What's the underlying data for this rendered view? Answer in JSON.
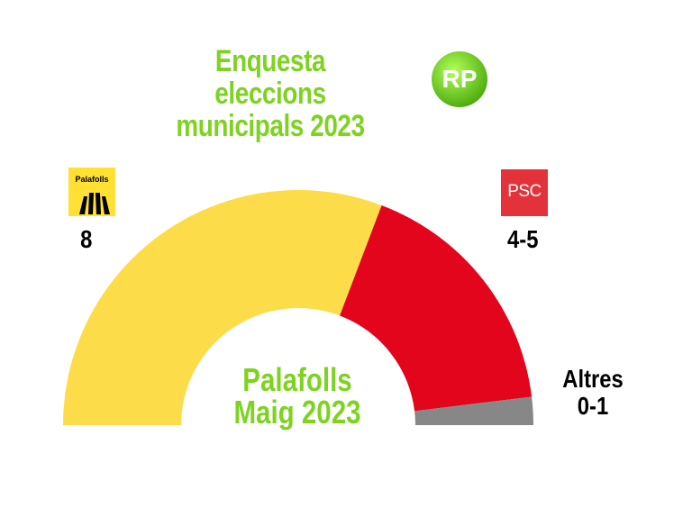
{
  "title_lines": [
    "Enquesta eleccions",
    "municipals 2023"
  ],
  "logo_text": "RP",
  "center_lines": [
    "Palafolls",
    "Maig 2023"
  ],
  "junts_logo_text": "Palafolls",
  "psc_logo_text": "PSC",
  "colors": {
    "accent_green": "#7ed321",
    "junts_yellow": "#fddc4a",
    "psc_red": "#e2051c",
    "altres_gray": "#878787"
  },
  "chart_data": {
    "type": "pie",
    "subtype": "semicircle-parliament",
    "total_seats": 13,
    "series": [
      {
        "name": "Palafolls",
        "label": "8",
        "seats": 8,
        "color": "#fddc4a"
      },
      {
        "name": "PSC",
        "label": "4-5",
        "seats": 4.5,
        "color": "#e2051c"
      },
      {
        "name": "Altres",
        "label": "0-1",
        "seats": 0.5,
        "color": "#878787"
      }
    ]
  }
}
